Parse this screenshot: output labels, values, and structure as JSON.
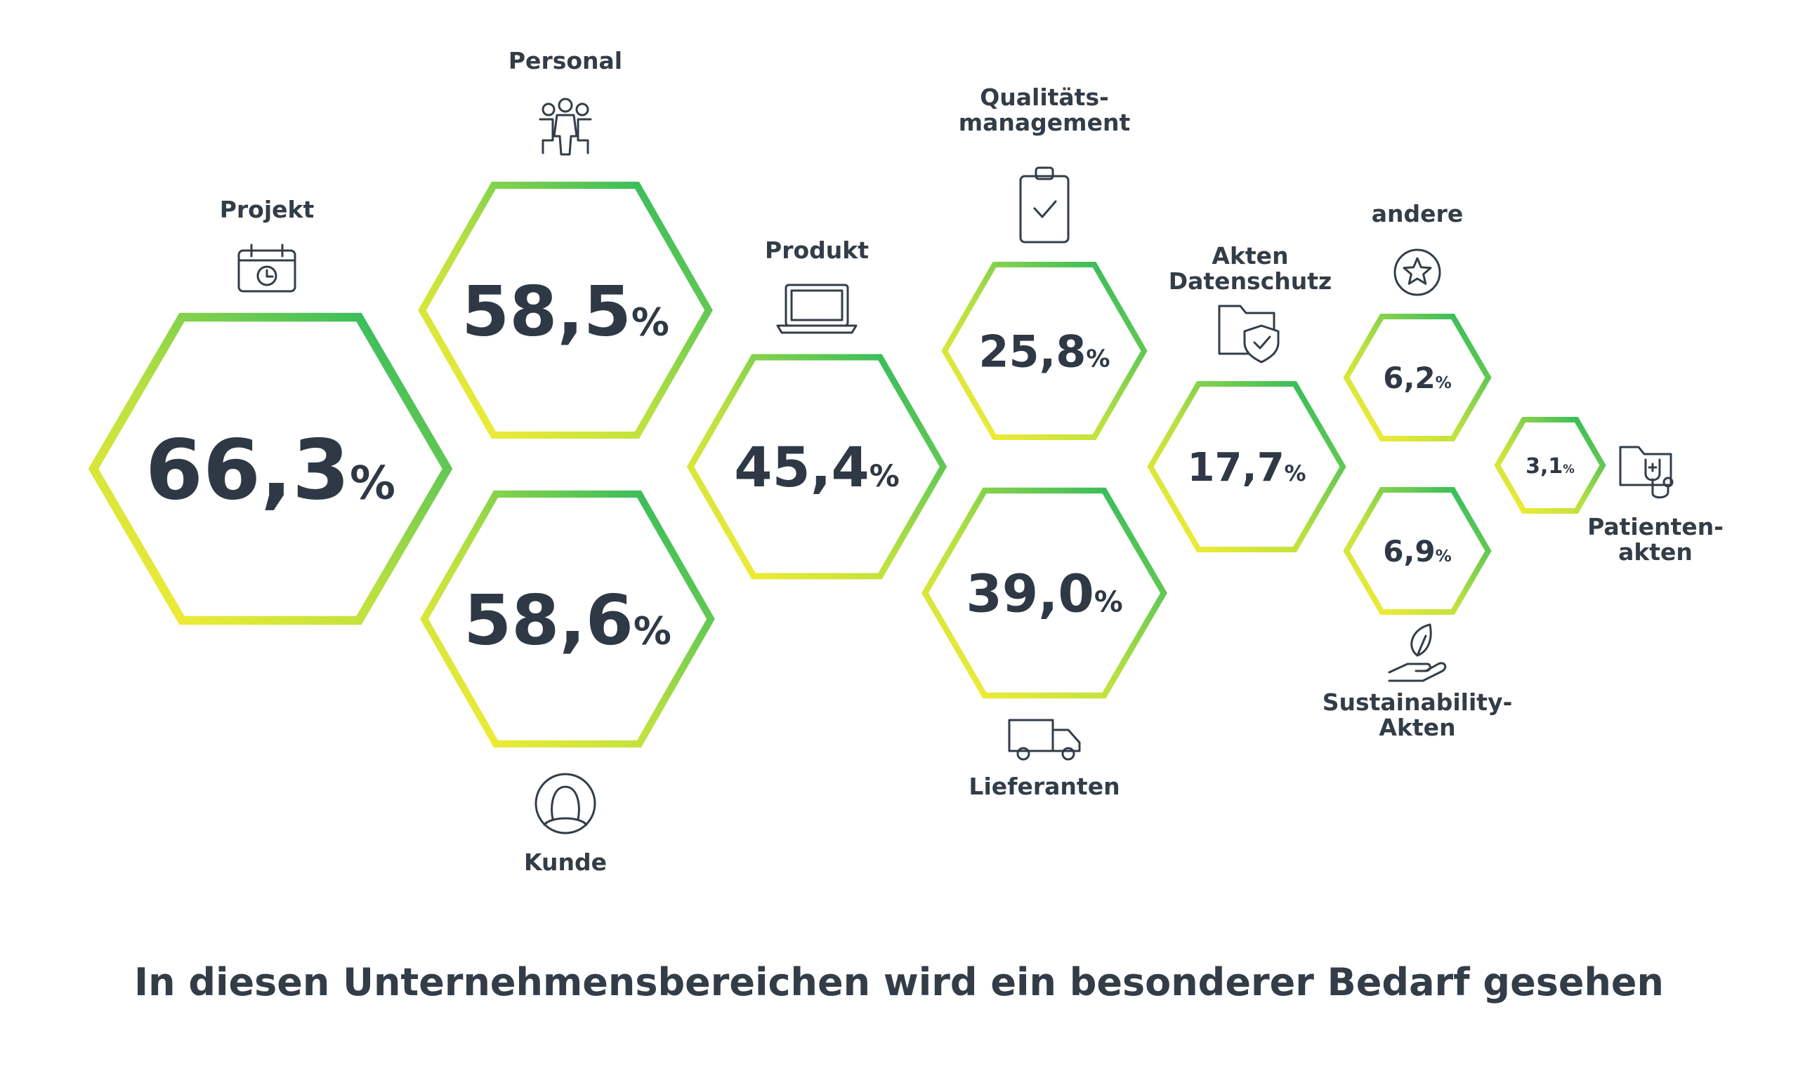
{
  "chart_data": {
    "type": "hexagon-bubble",
    "title": "In diesen Unternehmensbereichen wird ein besonderer Bedarf gesehen",
    "unit": "%",
    "categories": [
      "Projekt",
      "Personal",
      "Kunde",
      "Produkt",
      "Qualitäts-management",
      "Lieferanten",
      "Akten Datenschutz",
      "andere",
      "Sustainability-Akten",
      "Patienten-akten"
    ],
    "items": [
      {
        "label_lines": [
          "Projekt"
        ],
        "value": 66.3,
        "display": "66,3",
        "icon": "calendar-clock-icon"
      },
      {
        "label_lines": [
          "Personal"
        ],
        "value": 58.5,
        "display": "58,5",
        "icon": "people-group-icon"
      },
      {
        "label_lines": [
          "Kunde"
        ],
        "value": 58.6,
        "display": "58,6",
        "icon": "customer-avatar-icon"
      },
      {
        "label_lines": [
          "Produkt"
        ],
        "value": 45.4,
        "display": "45,4",
        "icon": "laptop-icon"
      },
      {
        "label_lines": [
          "Qualitäts-",
          "management"
        ],
        "value": 25.8,
        "display": "25,8",
        "icon": "clipboard-check-icon"
      },
      {
        "label_lines": [
          "Lieferanten"
        ],
        "value": 39.0,
        "display": "39,0",
        "icon": "truck-icon"
      },
      {
        "label_lines": [
          "Akten",
          "Datenschutz"
        ],
        "value": 17.7,
        "display": "17,7",
        "icon": "folder-shield-icon"
      },
      {
        "label_lines": [
          "andere"
        ],
        "value": 6.2,
        "display": "6,2",
        "icon": "star-circle-icon"
      },
      {
        "label_lines": [
          "Sustainability-",
          "Akten"
        ],
        "value": 6.9,
        "display": "6,9",
        "icon": "hand-leaf-icon"
      },
      {
        "label_lines": [
          "Patienten-",
          "akten"
        ],
        "value": 3.1,
        "display": "3,1",
        "icon": "folder-stethoscope-icon"
      }
    ],
    "colors": {
      "gradient_start": "#ffee33",
      "gradient_mid": "#9ad94a",
      "gradient_end": "#18b463",
      "text": "#2f3845"
    }
  }
}
